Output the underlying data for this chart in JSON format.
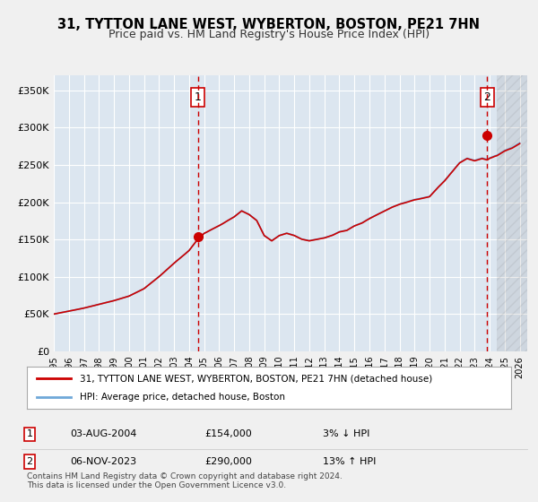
{
  "title": "31, TYTTON LANE WEST, WYBERTON, BOSTON, PE21 7HN",
  "subtitle": "Price paid vs. HM Land Registry's House Price Index (HPI)",
  "ylabel_ticks": [
    "£0",
    "£50K",
    "£100K",
    "£150K",
    "£200K",
    "£250K",
    "£300K",
    "£350K"
  ],
  "ytick_values": [
    0,
    50000,
    100000,
    150000,
    200000,
    250000,
    300000,
    350000
  ],
  "ylim": [
    0,
    370000
  ],
  "xlim_start": 1995.0,
  "xlim_end": 2026.5,
  "bg_color": "#dce6f0",
  "plot_bg_color": "#dce6f0",
  "grid_color": "#ffffff",
  "hpi_line_color": "#6fa8d8",
  "property_line_color": "#cc0000",
  "marker_color": "#cc0000",
  "vline_color": "#cc0000",
  "sale1_year": 2004.58,
  "sale1_price": 154000,
  "sale1_label": "1",
  "sale2_year": 2023.84,
  "sale2_price": 290000,
  "sale2_label": "2",
  "legend_line1": "31, TYTTON LANE WEST, WYBERTON, BOSTON, PE21 7HN (detached house)",
  "legend_line2": "HPI: Average price, detached house, Boston",
  "table_row1_num": "1",
  "table_row1_date": "03-AUG-2004",
  "table_row1_price": "£154,000",
  "table_row1_hpi": "3% ↓ HPI",
  "table_row2_num": "2",
  "table_row2_date": "06-NOV-2023",
  "table_row2_price": "£290,000",
  "table_row2_hpi": "13% ↑ HPI",
  "footnote": "Contains HM Land Registry data © Crown copyright and database right 2024.\nThis data is licensed under the Open Government Licence v3.0.",
  "hatch_area_start": 2024.5,
  "xtick_years": [
    1995,
    1996,
    1997,
    1998,
    1999,
    2000,
    2001,
    2002,
    2003,
    2004,
    2005,
    2006,
    2007,
    2008,
    2009,
    2010,
    2011,
    2012,
    2013,
    2014,
    2015,
    2016,
    2017,
    2018,
    2019,
    2020,
    2021,
    2022,
    2023,
    2024,
    2025,
    2026
  ]
}
